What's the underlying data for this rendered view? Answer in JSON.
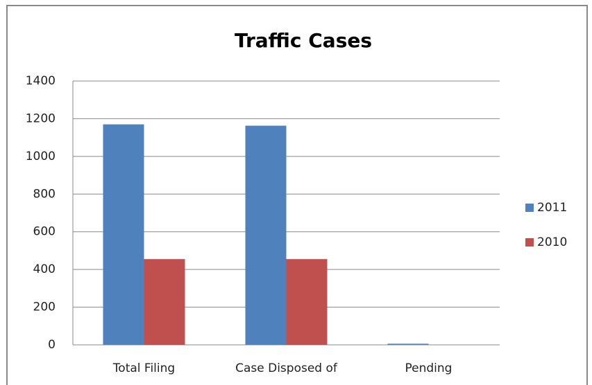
{
  "chart_data": {
    "type": "bar",
    "title": "Traffic Cases",
    "categories": [
      "Total Filing",
      "Case Disposed of",
      "Pending"
    ],
    "series": [
      {
        "name": "2011",
        "color": "#4f81bd",
        "values": [
          1170,
          1163,
          6
        ]
      },
      {
        "name": "2010",
        "color": "#c0504d",
        "values": [
          455,
          455,
          0
        ]
      }
    ],
    "ylim": [
      0,
      1400
    ],
    "yticks": [
      0,
      200,
      400,
      600,
      800,
      1000,
      1200,
      1400
    ],
    "grid": true,
    "legend": "right"
  }
}
